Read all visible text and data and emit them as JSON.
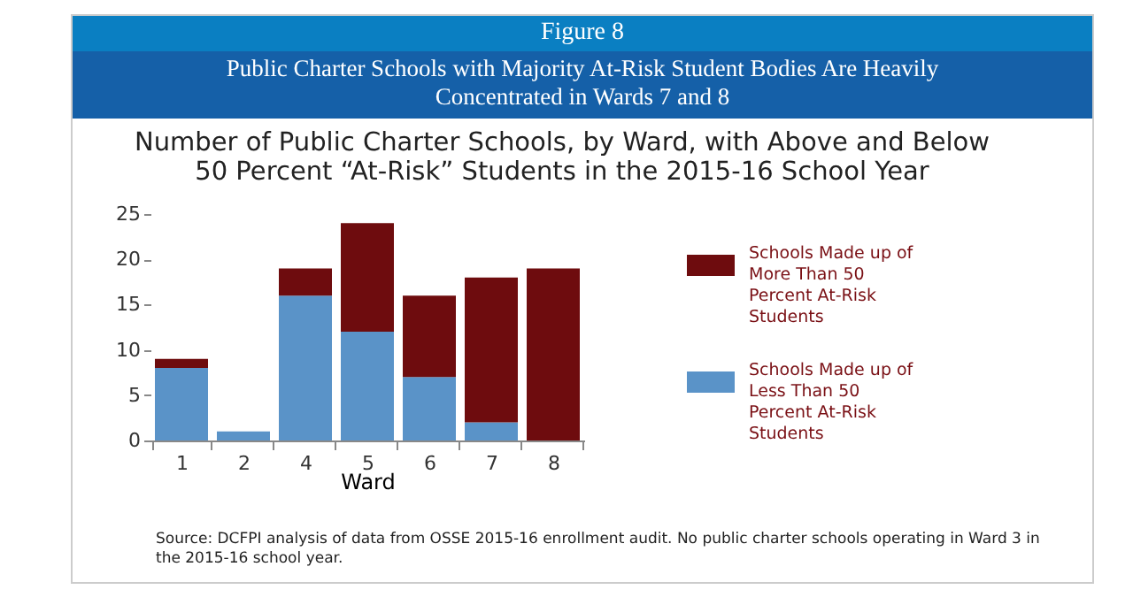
{
  "chart_data": {
    "type": "bar",
    "stacked": true,
    "title": "Number of Public Charter Schools, by Ward, with Above and Below 50 Percent “At-Risk” Students in the 2015-16 School Year",
    "xlabel": "Ward",
    "annotations": [
      "Figure 8",
      "Public Charter Schools with Majority At-Risk Student Bodies Are Heavily Concentrated in Wards 7 and 8",
      "Source: DCFPI analysis of data from OSSE 2015-16 enrollment audit. No public charter schools operating in Ward 3 in the 2015-16 school year."
    ],
    "categories": [
      "1",
      "2",
      "4",
      "5",
      "6",
      "7",
      "8"
    ],
    "series": [
      {
        "name": "Schools Made up of Less Than 50 Percent At-Risk Students",
        "color": "#5a93c8",
        "values": [
          8,
          1,
          16,
          12,
          7,
          2,
          0
        ]
      },
      {
        "name": "Schools Made up of More Than 50 Percent At-Risk Students",
        "color": "#6e0c0e",
        "values": [
          1,
          null,
          3,
          12,
          9,
          16,
          19
        ]
      }
    ],
    "ylim": [
      0,
      25
    ],
    "yticks": [
      0,
      5,
      10,
      15,
      20,
      25
    ],
    "grid": false,
    "legend": "right"
  }
}
